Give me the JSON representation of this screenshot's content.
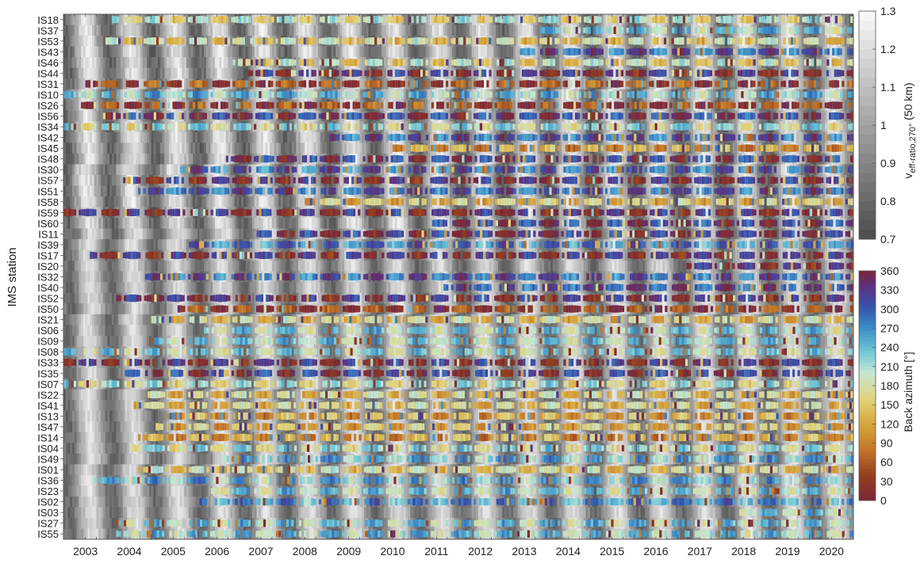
{
  "chart_data": {
    "type": "heatmap",
    "ylabel": "IMS station",
    "stations": [
      "IS18",
      "IS37",
      "IS53",
      "IS43",
      "IS46",
      "IS44",
      "IS31",
      "IS10",
      "IS26",
      "IS56",
      "IS34",
      "IS42",
      "IS45",
      "IS48",
      "IS30",
      "IS57",
      "IS51",
      "IS58",
      "IS59",
      "IS60",
      "IS11",
      "IS39",
      "IS17",
      "IS20",
      "IS32",
      "IS40",
      "IS52",
      "IS50",
      "IS21",
      "IS06",
      "IS09",
      "IS08",
      "IS33",
      "IS35",
      "IS07",
      "IS22",
      "IS41",
      "IS13",
      "IS47",
      "IS14",
      "IS04",
      "IS49",
      "IS01",
      "IS36",
      "IS23",
      "IS02",
      "IS03",
      "IS27",
      "IS55"
    ],
    "station_labels_shown": [
      "IS18",
      "IS37",
      "IS53",
      "IS43",
      "IS46",
      "IS44",
      "IS31",
      "IS10",
      "IS26",
      "IS56",
      "IS34",
      "IS42",
      "IS45",
      "IS48",
      "IS30",
      "IS57",
      "IS51",
      "IS58",
      "IS59",
      "IS60",
      "IS11",
      "IS39",
      "IS17",
      "IS20",
      "IS32",
      "IS40",
      "IS52",
      "IS50",
      "IS21",
      "IS06",
      "IS09",
      "IS08",
      "IS33",
      "IS35",
      "IS07",
      "IS22",
      "IS41",
      "IS13",
      "IS47",
      "IS14",
      "IS04",
      "IS49",
      "IS01",
      "IS36",
      "IS23",
      "IS02",
      "IS03",
      "IS27",
      "IS55"
    ],
    "x_ticks": [
      "2003",
      "2004",
      "2005",
      "2006",
      "2007",
      "2008",
      "2009",
      "2010",
      "2011",
      "2012",
      "2013",
      "2014",
      "2015",
      "2016",
      "2017",
      "2018",
      "2019",
      "2020"
    ],
    "xlim": [
      2003,
      2021
    ],
    "station_start_years": [
      2004.1,
      2013.8,
      2003.9,
      2013.4,
      2006.8,
      2007.2,
      2003.5,
      2003.0,
      2003.4,
      2003.9,
      2003.0,
      2009.0,
      2010.5,
      2006.7,
      2005.6,
      2004.3,
      2004.7,
      2008.5,
      2003.0,
      2011.4,
      2007.4,
      2005.8,
      2003.6,
      2017.2,
      2004.8,
      2011.6,
      2004.2,
      2005.6,
      2005.0,
      2006.2,
      2005.0,
      2003.0,
      2003.0,
      2004.4,
      2003.0,
      2004.8,
      2004.6,
      2005.3,
      2005.1,
      2004.7,
      2004.5,
      2006.6,
      2004.7,
      2003.7,
      2006.3,
      2006.1,
      2018.4,
      2004.2,
      2004.2
    ],
    "station_mean_azimuth": [
      180,
      225,
      160,
      300,
      170,
      350,
      45,
      230,
      40,
      330,
      200,
      300,
      110,
      330,
      290,
      350,
      300,
      140,
      350,
      330,
      340,
      280,
      350,
      350,
      300,
      310,
      350,
      40,
      150,
      220,
      220,
      210,
      350,
      340,
      190,
      150,
      150,
      120,
      135,
      110,
      200,
      240,
      160,
      240,
      220,
      265,
      220,
      220,
      225
    ],
    "colorbars": [
      {
        "label": "v",
        "label_subscript": "eff-ratio,270°",
        "label_suffix": " (50 km)",
        "ticks": [
          "0.7",
          "0.8",
          "0.9",
          "1",
          "1.1",
          "1.2",
          "1.3"
        ],
        "range": [
          0.7,
          1.3
        ],
        "colormap": "gray"
      },
      {
        "label": "Back azimuth [°]",
        "ticks": [
          "0",
          "30",
          "60",
          "90",
          "120",
          "150",
          "180",
          "210",
          "240",
          "270",
          "300",
          "330",
          "360"
        ],
        "range": [
          0,
          360
        ],
        "colormap": "roma"
      }
    ]
  }
}
